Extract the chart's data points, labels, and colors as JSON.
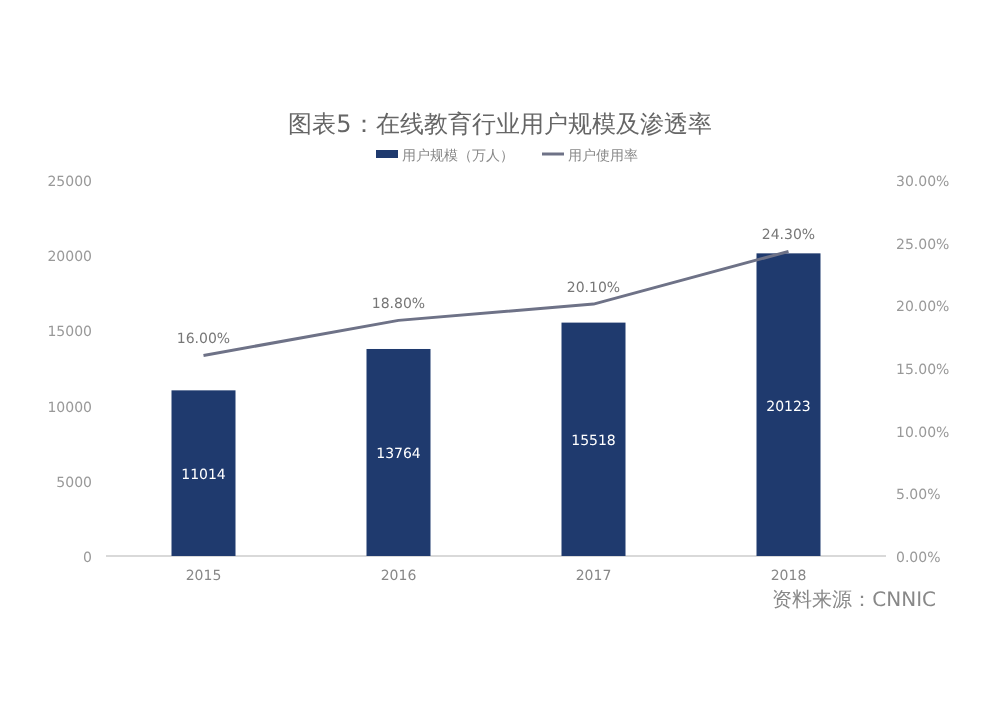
{
  "chart_data": {
    "type": "bar",
    "title": "图表5：在线教育行业用户规模及渗透率",
    "categories": [
      "2015",
      "2016",
      "2017",
      "2018"
    ],
    "series": [
      {
        "name": "用户规模（万人）",
        "color": "#1f3a6e",
        "values": [
          11014,
          13764,
          15518,
          20123
        ],
        "value_labels": [
          "11014",
          "13764",
          "15518",
          "20123"
        ]
      },
      {
        "name": "用户使用率",
        "type": "line",
        "axis": "y2",
        "color": "#6e7287",
        "values": [
          16.0,
          18.8,
          20.1,
          24.3
        ],
        "value_labels": [
          "16.00%",
          "18.80%",
          "20.10%",
          "24.30%"
        ]
      }
    ],
    "ylim": [
      0,
      25000
    ],
    "yticks": [
      0,
      5000,
      10000,
      15000,
      20000,
      25000
    ],
    "y2lim": [
      0,
      30
    ],
    "y2ticks": [
      {
        "value": 0,
        "label": "0.00%"
      },
      {
        "value": 5,
        "label": "5.00%"
      },
      {
        "value": 10,
        "label": "10.00%"
      },
      {
        "value": 15,
        "label": "15.00%"
      },
      {
        "value": 20,
        "label": "20.00%"
      },
      {
        "value": 25,
        "label": "25.00%"
      },
      {
        "value": 30,
        "label": "30.00%"
      }
    ],
    "grid": false,
    "legend": "top",
    "annotations": [
      "资料来源：CNNIC"
    ]
  }
}
